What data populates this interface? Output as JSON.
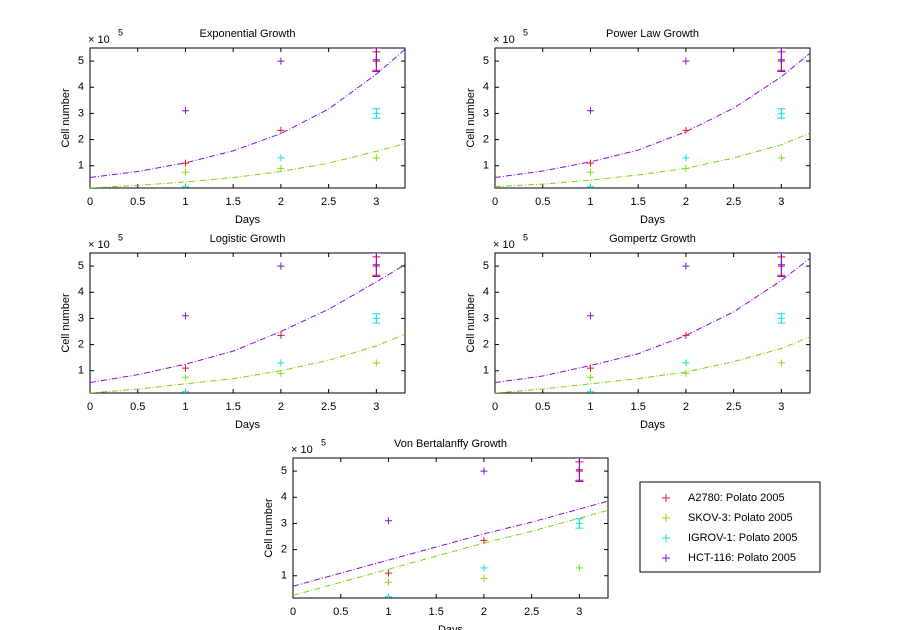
{
  "chart_data": [
    {
      "type": "scatter",
      "title": "Exponential Growth",
      "xlabel": "Days",
      "ylabel": "Cell number",
      "y_scale_label": "× 10",
      "y_scale_exponent": "5",
      "xlim": [
        0,
        3.3
      ],
      "ylim": [
        0.15,
        5.5
      ],
      "xticks": [
        0,
        0.5,
        1,
        1.5,
        2,
        2.5,
        3
      ],
      "yticks": [
        1,
        2,
        3,
        4,
        5
      ],
      "series": [
        {
          "color": "#e8141c",
          "x": [
            1,
            2,
            3
          ],
          "values": [
            1.1,
            2.35,
            5.0
          ],
          "errors": [
            null,
            null,
            0.35
          ]
        },
        {
          "color": "#80e010",
          "x": [
            1,
            2,
            3
          ],
          "values": [
            0.75,
            0.9,
            1.3
          ]
        },
        {
          "color": "#10e0e0",
          "x": [
            1,
            2,
            3
          ],
          "values": [
            0.2,
            1.3,
            3.0
          ],
          "errors": [
            null,
            null,
            0.18
          ]
        },
        {
          "color": "#8010e0",
          "x": [
            1,
            2,
            3
          ],
          "values": [
            3.1,
            5.0,
            5.05
          ],
          "errors": [
            null,
            null,
            0.45
          ]
        }
      ],
      "fits": [
        {
          "color": "#8010e0",
          "x": [
            0,
            0.5,
            1,
            1.5,
            2,
            2.5,
            3,
            3.3
          ],
          "values": [
            0.55,
            0.78,
            1.11,
            1.57,
            2.23,
            3.17,
            4.5,
            5.45
          ]
        },
        {
          "color": "#80d010",
          "x": [
            0,
            0.5,
            1,
            1.5,
            2,
            2.5,
            3,
            3.3
          ],
          "values": [
            0.15,
            0.25,
            0.38,
            0.55,
            0.78,
            1.1,
            1.55,
            1.85
          ]
        }
      ]
    },
    {
      "type": "scatter",
      "title": "Power Law Growth",
      "xlabel": "Days",
      "ylabel": "Cell number",
      "y_scale_label": "× 10",
      "y_scale_exponent": "5",
      "xlim": [
        0,
        3.3
      ],
      "ylim": [
        0.15,
        5.5
      ],
      "xticks": [
        0,
        0.5,
        1,
        1.5,
        2,
        2.5,
        3
      ],
      "yticks": [
        1,
        2,
        3,
        4,
        5
      ],
      "series": [
        {
          "color": "#e8141c",
          "x": [
            1,
            2,
            3
          ],
          "values": [
            1.1,
            2.35,
            5.0
          ],
          "errors": [
            null,
            null,
            0.35
          ]
        },
        {
          "color": "#80e010",
          "x": [
            1,
            2,
            3
          ],
          "values": [
            0.75,
            0.9,
            1.3
          ]
        },
        {
          "color": "#10e0e0",
          "x": [
            1,
            2,
            3
          ],
          "values": [
            0.2,
            1.3,
            3.0
          ],
          "errors": [
            null,
            null,
            0.18
          ]
        },
        {
          "color": "#8010e0",
          "x": [
            1,
            2,
            3
          ],
          "values": [
            3.1,
            5.0,
            5.05
          ],
          "errors": [
            null,
            null,
            0.45
          ]
        }
      ],
      "fits": [
        {
          "color": "#8010e0",
          "x": [
            0,
            0.5,
            1,
            1.5,
            2,
            2.5,
            3,
            3.3
          ],
          "values": [
            0.55,
            0.8,
            1.15,
            1.6,
            2.3,
            3.2,
            4.4,
            5.3
          ]
        },
        {
          "color": "#80d010",
          "x": [
            0,
            0.5,
            1,
            1.5,
            2,
            2.5,
            3,
            3.3
          ],
          "values": [
            0.2,
            0.3,
            0.45,
            0.65,
            0.9,
            1.3,
            1.8,
            2.25
          ]
        }
      ]
    },
    {
      "type": "scatter",
      "title": "Logistic Growth",
      "xlabel": "Days",
      "ylabel": "Cell number",
      "y_scale_label": "× 10",
      "y_scale_exponent": "5",
      "xlim": [
        0,
        3.3
      ],
      "ylim": [
        0.15,
        5.5
      ],
      "xticks": [
        0,
        0.5,
        1,
        1.5,
        2,
        2.5,
        3
      ],
      "yticks": [
        1,
        2,
        3,
        4,
        5
      ],
      "series": [
        {
          "color": "#e8141c",
          "x": [
            1,
            2,
            3
          ],
          "values": [
            1.1,
            2.35,
            5.0
          ],
          "errors": [
            null,
            null,
            0.35
          ]
        },
        {
          "color": "#80e010",
          "x": [
            1,
            2,
            3
          ],
          "values": [
            0.75,
            0.9,
            1.3
          ]
        },
        {
          "color": "#10e0e0",
          "x": [
            1,
            2,
            3
          ],
          "values": [
            0.2,
            1.3,
            3.0
          ],
          "errors": [
            null,
            null,
            0.18
          ]
        },
        {
          "color": "#8010e0",
          "x": [
            1,
            2,
            3
          ],
          "values": [
            3.1,
            5.0,
            5.05
          ],
          "errors": [
            null,
            null,
            0.45
          ]
        }
      ],
      "fits": [
        {
          "color": "#8010e0",
          "x": [
            0,
            0.5,
            1,
            1.5,
            2,
            2.5,
            3,
            3.3
          ],
          "values": [
            0.55,
            0.85,
            1.25,
            1.75,
            2.5,
            3.35,
            4.4,
            5.05
          ]
        },
        {
          "color": "#80d010",
          "x": [
            0,
            0.5,
            1,
            1.5,
            2,
            2.5,
            3,
            3.3
          ],
          "values": [
            0.15,
            0.3,
            0.5,
            0.7,
            1.0,
            1.4,
            1.95,
            2.4
          ]
        }
      ]
    },
    {
      "type": "scatter",
      "title": "Gompertz Growth",
      "xlabel": "Days",
      "ylabel": "Cell number",
      "y_scale_label": "× 10",
      "y_scale_exponent": "5",
      "xlim": [
        0,
        3.3
      ],
      "ylim": [
        0.15,
        5.5
      ],
      "xticks": [
        0,
        0.5,
        1,
        1.5,
        2,
        2.5,
        3
      ],
      "yticks": [
        1,
        2,
        3,
        4,
        5
      ],
      "series": [
        {
          "color": "#e8141c",
          "x": [
            1,
            2,
            3
          ],
          "values": [
            1.1,
            2.35,
            5.0
          ],
          "errors": [
            null,
            null,
            0.35
          ]
        },
        {
          "color": "#80e010",
          "x": [
            1,
            2,
            3
          ],
          "values": [
            0.75,
            0.9,
            1.3
          ]
        },
        {
          "color": "#10e0e0",
          "x": [
            1,
            2,
            3
          ],
          "values": [
            0.2,
            1.3,
            3.0
          ],
          "errors": [
            null,
            null,
            0.18
          ]
        },
        {
          "color": "#8010e0",
          "x": [
            1,
            2,
            3
          ],
          "values": [
            3.1,
            5.0,
            5.05
          ],
          "errors": [
            null,
            null,
            0.45
          ]
        }
      ],
      "fits": [
        {
          "color": "#8010e0",
          "x": [
            0,
            0.5,
            1,
            1.5,
            2,
            2.5,
            3,
            3.3
          ],
          "values": [
            0.55,
            0.8,
            1.2,
            1.65,
            2.35,
            3.25,
            4.45,
            5.3
          ]
        },
        {
          "color": "#80d010",
          "x": [
            0,
            0.5,
            1,
            1.5,
            2,
            2.5,
            3,
            3.3
          ],
          "values": [
            0.15,
            0.3,
            0.5,
            0.7,
            0.95,
            1.35,
            1.85,
            2.3
          ]
        }
      ]
    },
    {
      "type": "scatter",
      "title": "Von Bertalanffy Growth",
      "xlabel": "Days",
      "ylabel": "Cell number",
      "y_scale_label": "× 10",
      "y_scale_exponent": "5",
      "xlim": [
        0,
        3.3
      ],
      "ylim": [
        0.15,
        5.5
      ],
      "xticks": [
        0,
        0.5,
        1,
        1.5,
        2,
        2.5,
        3
      ],
      "yticks": [
        1,
        2,
        3,
        4,
        5
      ],
      "series": [
        {
          "name": "A2780: Polato 2005",
          "color": "#e8141c",
          "x": [
            1,
            2,
            3
          ],
          "values": [
            1.1,
            2.35,
            5.0
          ],
          "errors": [
            null,
            null,
            0.35
          ]
        },
        {
          "name": "SKOV-3: Polato 2005",
          "color": "#80e010",
          "x": [
            1,
            2,
            3
          ],
          "values": [
            0.75,
            0.9,
            1.3
          ]
        },
        {
          "name": "IGROV-1: Polato 2005",
          "color": "#10e0e0",
          "x": [
            1,
            2,
            3
          ],
          "values": [
            0.2,
            1.3,
            3.0
          ],
          "errors": [
            null,
            null,
            0.18
          ]
        },
        {
          "name": "HCT-116: Polato 2005",
          "color": "#8010e0",
          "x": [
            1,
            2,
            3
          ],
          "values": [
            3.1,
            5.0,
            5.05
          ],
          "errors": [
            null,
            null,
            0.45
          ]
        }
      ],
      "fits": [
        {
          "color": "#8010e0",
          "x": [
            0,
            0.5,
            1,
            1.5,
            2,
            2.5,
            3,
            3.3
          ],
          "values": [
            0.6,
            1.1,
            1.6,
            2.1,
            2.6,
            3.05,
            3.55,
            3.85
          ]
        },
        {
          "color": "#80d010",
          "x": [
            0,
            0.5,
            1,
            1.5,
            2,
            2.5,
            3,
            3.3
          ],
          "values": [
            0.25,
            0.75,
            1.25,
            1.75,
            2.25,
            2.7,
            3.2,
            3.5
          ]
        }
      ]
    }
  ]
}
